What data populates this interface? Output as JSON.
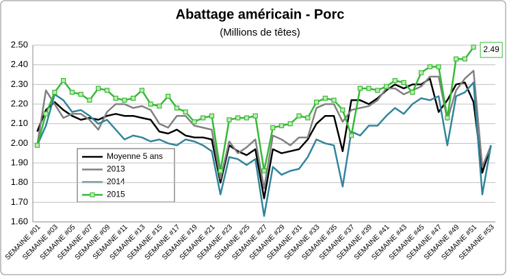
{
  "chart_data": {
    "type": "line",
    "title": "Abattage américain - Porc",
    "subtitle": "(Millions de têtes)",
    "categories": [
      "SEMAINE #01",
      null,
      "SEMAINE #03",
      null,
      "SEMAINE #05",
      null,
      "SEMAINE #07",
      null,
      "SEMAINE #09",
      null,
      "SEMAINE #11",
      null,
      "SEMAINE #13",
      null,
      "SEMAINE #15",
      null,
      "SEMAINE #17",
      null,
      "SEMAINE #19",
      null,
      "SEMAINE #21",
      null,
      "SEMAINE #23",
      null,
      "SEMAINE #25",
      null,
      "SEMAINE #27",
      null,
      "SEMAINE #29",
      null,
      "SEMAINE #31",
      null,
      "SEMAINE #33",
      null,
      "SEMAINE #35",
      null,
      "SEMAINE #37",
      null,
      "SEMAINE #39",
      null,
      "SEMAINE #41",
      null,
      "SEMAINE #43",
      null,
      "SEMAINE #45",
      null,
      "SEMAINE #47",
      null,
      "SEMAINE #49",
      null,
      "SEMAINE #51",
      null,
      "SEMAINE #53"
    ],
    "series": [
      {
        "name": "Moyenne 5 ans",
        "color": "#000000",
        "values": [
          2.06,
          2.17,
          2.21,
          2.17,
          2.14,
          2.12,
          2.13,
          2.12,
          2.14,
          2.15,
          2.14,
          2.14,
          2.13,
          2.12,
          2.06,
          2.05,
          2.07,
          2.04,
          2.03,
          2.03,
          2.02,
          1.8,
          1.99,
          1.96,
          1.94,
          1.97,
          1.72,
          1.97,
          1.95,
          1.96,
          1.97,
          2.02,
          2.1,
          2.14,
          2.14,
          1.96,
          2.22,
          2.22,
          2.2,
          2.23,
          2.27,
          2.3,
          2.28,
          2.3,
          2.3,
          2.33,
          2.16,
          2.22,
          2.3,
          2.31,
          2.21,
          1.85,
          1.99
        ]
      },
      {
        "name": "2013",
        "color": "#808080",
        "values": [
          1.99,
          2.27,
          2.2,
          2.13,
          2.15,
          2.15,
          2.12,
          2.07,
          2.16,
          2.2,
          2.2,
          2.18,
          2.19,
          2.17,
          2.1,
          2.08,
          2.14,
          2.14,
          2.09,
          2.08,
          2.07,
          1.82,
          2.01,
          1.95,
          1.98,
          2.02,
          1.77,
          2.04,
          2.02,
          1.99,
          2.03,
          2.03,
          2.18,
          2.2,
          2.2,
          2.11,
          2.17,
          2.18,
          2.19,
          2.22,
          2.28,
          2.28,
          2.25,
          2.27,
          2.29,
          2.34,
          2.34,
          2.12,
          2.27,
          2.33,
          2.37,
          1.88,
          1.99
        ]
      },
      {
        "name": "2014",
        "color": "#31849b",
        "values": [
          1.99,
          2.09,
          2.25,
          2.22,
          2.16,
          2.17,
          2.14,
          2.1,
          2.12,
          2.07,
          2.02,
          2.04,
          2.03,
          2.01,
          2.02,
          2.0,
          1.99,
          2.02,
          2.01,
          1.99,
          1.96,
          1.74,
          1.93,
          1.92,
          1.89,
          1.92,
          1.63,
          1.88,
          1.84,
          1.86,
          1.87,
          1.93,
          2.02,
          2.0,
          1.99,
          1.78,
          2.06,
          2.04,
          2.09,
          2.09,
          2.14,
          2.18,
          2.15,
          2.2,
          2.23,
          2.22,
          2.24,
          1.99,
          2.24,
          2.26,
          2.31,
          1.74,
          1.99
        ]
      },
      {
        "name": "2015",
        "color": "#33bb33",
        "marker_fill": "#c4e8b4",
        "values": [
          1.99,
          2.15,
          2.26,
          2.32,
          2.26,
          2.25,
          2.22,
          2.28,
          2.27,
          2.23,
          2.22,
          2.23,
          2.27,
          2.2,
          2.19,
          2.24,
          2.18,
          2.16,
          2.11,
          2.13,
          2.14,
          1.86,
          2.12,
          2.13,
          2.13,
          2.14,
          1.86,
          2.08,
          2.09,
          2.1,
          2.14,
          2.13,
          2.21,
          2.23,
          2.22,
          2.17,
          2.04,
          2.28,
          2.28,
          2.27,
          2.29,
          2.32,
          2.31,
          2.26,
          2.36,
          2.39,
          2.39,
          2.13,
          2.43,
          2.43,
          2.49,
          null,
          null
        ]
      }
    ],
    "ylim": [
      1.6,
      2.5
    ],
    "yticks": [
      {
        "value": 1.6,
        "label": "1.60"
      },
      {
        "value": 1.7,
        "label": "1.70"
      },
      {
        "value": 1.8,
        "label": "1.80"
      },
      {
        "value": 1.9,
        "label": "1.90"
      },
      {
        "value": 2.0,
        "label": "2.00"
      },
      {
        "value": 2.1,
        "label": "2.10"
      },
      {
        "value": 2.2,
        "label": "2.20"
      },
      {
        "value": 2.3,
        "label": "2.30"
      },
      {
        "value": 2.4,
        "label": "2.40"
      },
      {
        "value": 2.5,
        "label": "2.50"
      }
    ],
    "grid": true
  }
}
